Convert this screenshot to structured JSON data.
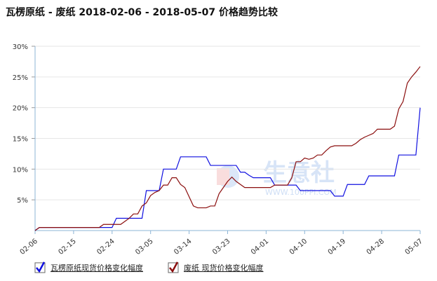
{
  "chart_data": {
    "type": "line",
    "title": "瓦楞原纸 - 废纸 2018-02-06 - 2018-05-07 价格趋势比较",
    "watermark": "生意社",
    "watermark_sub": "WWW.100PPI.COM",
    "categories": [
      "02-06",
      null,
      null,
      null,
      null,
      null,
      null,
      null,
      null,
      "02-15",
      null,
      null,
      null,
      null,
      null,
      null,
      null,
      null,
      "02-24",
      null,
      null,
      null,
      null,
      null,
      null,
      null,
      null,
      "03-05",
      null,
      null,
      null,
      null,
      null,
      null,
      null,
      null,
      "03-14",
      null,
      null,
      null,
      null,
      null,
      null,
      null,
      null,
      "03-23",
      null,
      null,
      null,
      null,
      null,
      null,
      null,
      null,
      "04-01",
      null,
      null,
      null,
      null,
      null,
      null,
      null,
      null,
      "04-10",
      null,
      null,
      null,
      null,
      null,
      null,
      null,
      null,
      "04-19",
      null,
      null,
      null,
      null,
      null,
      null,
      null,
      null,
      "04-28",
      null,
      null,
      null,
      null,
      null,
      null,
      null,
      null,
      "05-07"
    ],
    "series": [
      {
        "name": "瓦楞原纸现货价格变化幅度",
        "color": "#1010e0",
        "values": [
          0,
          0.5,
          0.5,
          0.5,
          0.5,
          0.5,
          0.5,
          0.5,
          0.5,
          0.5,
          0.5,
          0.5,
          0.5,
          0.5,
          0.5,
          0.5,
          0.5,
          0.5,
          0.5,
          2,
          2,
          2,
          2,
          2,
          2,
          2,
          6.5,
          6.5,
          6.5,
          6.5,
          10,
          10,
          10,
          10,
          12,
          12,
          12,
          12,
          12,
          12,
          12,
          10.6,
          10.6,
          10.6,
          10.6,
          10.6,
          10.6,
          10.6,
          9.5,
          9.5,
          9,
          8.6,
          8.6,
          8.6,
          8.6,
          8.6,
          7.4,
          7.4,
          7.4,
          7.4,
          7.4,
          7.4,
          6.5,
          6.5,
          6.5,
          6.5,
          6.5,
          6.5,
          6.5,
          6.5,
          5.6,
          5.6,
          5.6,
          7.5,
          7.5,
          7.5,
          7.5,
          7.5,
          8.9,
          8.9,
          8.9,
          8.9,
          8.9,
          8.9,
          8.9,
          12.3,
          12.3,
          12.3,
          12.3,
          12.3,
          20
        ]
      },
      {
        "name": "废纸 现货价格变化幅度",
        "color": "#8b0e0e",
        "values": [
          0,
          0.5,
          0.5,
          0.5,
          0.5,
          0.5,
          0.5,
          0.5,
          0.5,
          0.5,
          0.5,
          0.5,
          0.5,
          0.5,
          0.5,
          0.5,
          1,
          1,
          1,
          1,
          1,
          1.5,
          2,
          2.7,
          2.7,
          4,
          4.5,
          5.7,
          6.2,
          6.5,
          7.4,
          7.4,
          8.6,
          8.6,
          7.5,
          7,
          5.5,
          4,
          3.7,
          3.7,
          3.7,
          4,
          4,
          6,
          7,
          8,
          8.7,
          8,
          7.5,
          7,
          7,
          7,
          7,
          7,
          7,
          7,
          7.4,
          7.4,
          7.4,
          7.4,
          8.6,
          11.2,
          11.2,
          11.8,
          11.6,
          11.8,
          12.3,
          12.3,
          13,
          13.6,
          13.8,
          13.8,
          13.8,
          13.8,
          13.8,
          14.2,
          14.8,
          15.2,
          15.5,
          15.8,
          16.5,
          16.5,
          16.5,
          16.5,
          17,
          19.8,
          21,
          24,
          25,
          25.8,
          26.7
        ]
      }
    ],
    "ylim": [
      0,
      30
    ],
    "yticks": [
      {
        "value": 5,
        "label": "5%"
      },
      {
        "value": 10,
        "label": "10%"
      },
      {
        "value": 15,
        "label": "15%"
      },
      {
        "value": 20,
        "label": "20%"
      },
      {
        "value": 25,
        "label": "25%"
      },
      {
        "value": 30,
        "label": "30%"
      }
    ],
    "grid": true
  }
}
